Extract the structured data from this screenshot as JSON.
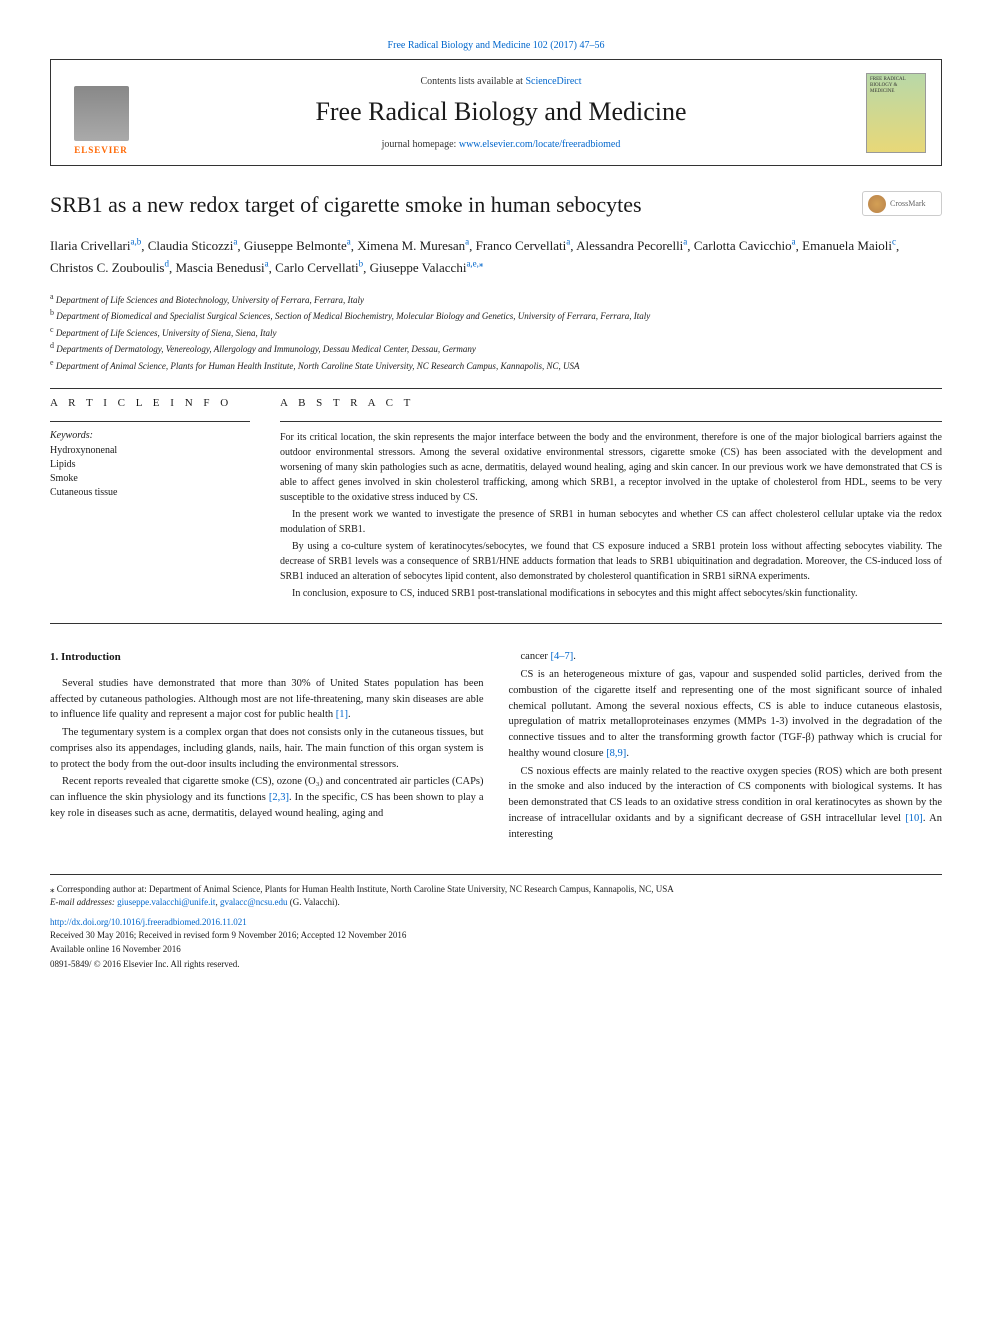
{
  "top_citation": "Free Radical Biology and Medicine 102 (2017) 47–56",
  "header": {
    "contents_prefix": "Contents lists available at ",
    "contents_link": "ScienceDirect",
    "journal_name": "Free Radical Biology and Medicine",
    "homepage_prefix": "journal homepage: ",
    "homepage_url": "www.elsevier.com/locate/freeradbiomed",
    "elsevier_label": "ELSEVIER",
    "cover_title": "FREE RADICAL BIOLOGY & MEDICINE"
  },
  "crossmark_label": "CrossMark",
  "title": "SRB1 as a new redox target of cigarette smoke in human sebocytes",
  "authors": [
    {
      "name": "Ilaria Crivellari",
      "sup": "a,b"
    },
    {
      "name": "Claudia Sticozzi",
      "sup": "a"
    },
    {
      "name": "Giuseppe Belmonte",
      "sup": "a"
    },
    {
      "name": "Ximena M. Muresan",
      "sup": "a"
    },
    {
      "name": "Franco Cervellati",
      "sup": "a"
    },
    {
      "name": "Alessandra Pecorelli",
      "sup": "a"
    },
    {
      "name": "Carlotta Cavicchio",
      "sup": "a"
    },
    {
      "name": "Emanuela Maioli",
      "sup": "c"
    },
    {
      "name": "Christos C. Zouboulis",
      "sup": "d"
    },
    {
      "name": "Mascia Benedusi",
      "sup": "a"
    },
    {
      "name": "Carlo Cervellati",
      "sup": "b"
    },
    {
      "name": "Giuseppe Valacchi",
      "sup": "a,e,⁎"
    }
  ],
  "affiliations": [
    {
      "sup": "a",
      "text": "Department of Life Sciences and Biotechnology, University of Ferrara, Ferrara, Italy"
    },
    {
      "sup": "b",
      "text": "Department of Biomedical and Specialist Surgical Sciences, Section of Medical Biochemistry, Molecular Biology and Genetics, University of Ferrara, Ferrara, Italy"
    },
    {
      "sup": "c",
      "text": "Department of Life Sciences, University of Siena, Siena, Italy"
    },
    {
      "sup": "d",
      "text": "Departments of Dermatology, Venereology, Allergology and Immunology, Dessau Medical Center, Dessau, Germany"
    },
    {
      "sup": "e",
      "text": "Department of Animal Science, Plants for Human Health Institute, North Caroline State University, NC Research Campus, Kannapolis, NC, USA"
    }
  ],
  "article_info_heading": "A R T I C L E  I N F O",
  "keywords_label": "Keywords:",
  "keywords": [
    "Hydroxynonenal",
    "Lipids",
    "Smoke",
    "Cutaneous tissue"
  ],
  "abstract_heading": "A B S T R A C T",
  "abstract_paragraphs": [
    "For its critical location, the skin represents the major interface between the body and the environment, therefore is one of the major biological barriers against the outdoor environmental stressors. Among the several oxidative environmental stressors, cigarette smoke (CS) has been associated with the development and worsening of many skin pathologies such as acne, dermatitis, delayed wound healing, aging and skin cancer. In our previous work we have demonstrated that CS is able to affect genes involved in skin cholesterol trafficking, among which SRB1, a receptor involved in the uptake of cholesterol from HDL, seems to be very susceptible to the oxidative stress induced by CS.",
    "In the present work we wanted to investigate the presence of SRB1 in human sebocytes and whether CS can affect cholesterol cellular uptake via the redox modulation of SRB1.",
    "By using a co-culture system of keratinocytes/sebocytes, we found that CS exposure induced a SRB1 protein loss without affecting sebocytes viability. The decrease of SRB1 levels was a consequence of SRB1/HNE adducts formation that leads to SRB1 ubiquitination and degradation. Moreover, the CS-induced loss of SRB1 induced an alteration of sebocytes lipid content, also demonstrated by cholesterol quantification in SRB1 siRNA experiments.",
    "In conclusion, exposure to CS, induced SRB1 post-translational modifications in sebocytes and this might affect sebocytes/skin functionality."
  ],
  "intro_heading": "1. Introduction",
  "left_col_paragraphs": [
    "Several studies have demonstrated that more than 30% of United States population has been affected by cutaneous pathologies. Although most are not life-threatening, many skin diseases are able to influence life quality and represent a major cost for public health [1].",
    "The tegumentary system is a complex organ that does not consists only in the cutaneous tissues, but comprises also its appendages, including glands, nails, hair. The main function of this organ system is to protect the body from the out-door insults including the environmental stressors.",
    "Recent reports revealed that cigarette smoke (CS), ozone (O₃) and concentrated air particles (CAPs) can influence the skin physiology and its functions [2,3]. In the specific, CS has been shown to play a key role in diseases such as acne, dermatitis, delayed wound healing, aging and"
  ],
  "right_col_paragraphs": [
    "cancer [4–7].",
    "CS is an heterogeneous mixture of gas, vapour and suspended solid particles, derived from the combustion of the cigarette itself and representing one of the most significant source of inhaled chemical pollutant. Among the several noxious effects, CS is able to induce cutaneous elastosis, upregulation of matrix metalloproteinases enzymes (MMPs 1-3) involved in the degradation of the connective tissues and to alter the transforming growth factor (TGF-β) pathway which is crucial for healthy wound closure [8,9].",
    "CS noxious effects are mainly related to the reactive oxygen species (ROS) which are both present in the smoke and also induced by the interaction of CS components with biological systems. It has been demonstrated that CS leads to an oxidative stress condition in oral keratinocytes as shown by the increase of intracellular oxidants and by a significant decrease of GSH intracellular level [10]. An interesting"
  ],
  "footnote": {
    "corresponding": "⁎ Corresponding author at: Department of Animal Science, Plants for Human Health Institute, North Caroline State University, NC Research Campus, Kannapolis, NC, USA",
    "email_label": "E-mail addresses: ",
    "email1": "giuseppe.valacchi@unife.it",
    "email2": "gvalacc@ncsu.edu",
    "email_suffix": " (G. Valacchi)."
  },
  "doi": "http://dx.doi.org/10.1016/j.freeradbiomed.2016.11.021",
  "pub_info": [
    "Received 30 May 2016; Received in revised form 9 November 2016; Accepted 12 November 2016",
    "Available online 16 November 2016",
    "0891-5849/ © 2016 Elsevier Inc. All rights reserved."
  ],
  "refs": {
    "r1": "[1]",
    "r23": "[2,3]",
    "r47": "[4–7]",
    "r89": "[8,9]",
    "r10": "[10]"
  },
  "colors": {
    "link": "#0066cc",
    "elsevier_orange": "#ff6600",
    "text": "#1a1a1a"
  }
}
